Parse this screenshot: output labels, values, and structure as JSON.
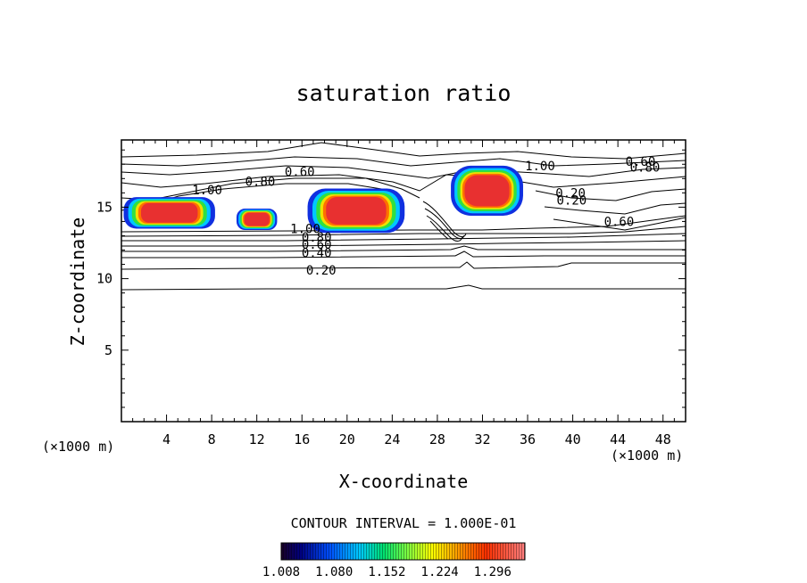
{
  "chart_data": {
    "type": "heatmap",
    "title": "saturation ratio",
    "xlabel": "X-coordinate",
    "ylabel": "Z-coordinate",
    "x_unit_left": "(×1000 m)",
    "x_unit_right": "(×1000 m)",
    "xlim": [
      0,
      50
    ],
    "ylim": [
      0,
      19.7
    ],
    "x_ticks": [
      4,
      8,
      12,
      16,
      20,
      24,
      28,
      32,
      36,
      40,
      44,
      48
    ],
    "x_tick_labels": [
      "4",
      "8",
      "12",
      "16",
      "20",
      "24",
      "28",
      "32",
      "36",
      "40",
      "44",
      "48"
    ],
    "y_ticks": [
      5,
      10,
      15
    ],
    "y_tick_labels": [
      "5",
      "10",
      "15"
    ],
    "contour_interval_text": "CONTOUR INTERVAL = 1.000E-01",
    "colorbar": {
      "range": [
        1.008,
        1.34
      ],
      "ticks": [
        1.008,
        1.08,
        1.152,
        1.224,
        1.296
      ],
      "tick_labels": [
        "1.008",
        "1.080",
        "1.152",
        "1.224",
        "1.296"
      ]
    },
    "contour_labels": [
      {
        "text": "0.20",
        "x": 17.7,
        "z": 10.6
      },
      {
        "text": "0.40",
        "x": 17.3,
        "z": 11.8
      },
      {
        "text": "0.60",
        "x": 17.3,
        "z": 12.4
      },
      {
        "text": "0.80",
        "x": 17.3,
        "z": 12.9
      },
      {
        "text": "1.00",
        "x": 16.3,
        "z": 13.5
      },
      {
        "text": "1.00",
        "x": 7.6,
        "z": 16.2
      },
      {
        "text": "0.80",
        "x": 12.3,
        "z": 16.8
      },
      {
        "text": "0.60",
        "x": 15.8,
        "z": 17.5
      },
      {
        "text": "1.00",
        "x": 37.1,
        "z": 17.9
      },
      {
        "text": "0.20",
        "x": 39.8,
        "z": 16.0
      },
      {
        "text": "0.20",
        "x": 39.9,
        "z": 15.5
      },
      {
        "text": "0.60",
        "x": 46.0,
        "z": 18.2
      },
      {
        "text": "0.80",
        "x": 46.4,
        "z": 17.8
      },
      {
        "text": "0.60",
        "x": 44.1,
        "z": 14.0
      }
    ],
    "supersaturated_regions": [
      {
        "x": [
          0.2,
          8.3
        ],
        "z": [
          13.5,
          15.7
        ]
      },
      {
        "x": [
          10.2,
          13.8
        ],
        "z": [
          13.4,
          14.9
        ]
      },
      {
        "x": [
          16.5,
          25.1
        ],
        "z": [
          13.2,
          16.3
        ]
      },
      {
        "x": [
          29.2,
          35.6
        ],
        "z": [
          14.4,
          17.9
        ]
      }
    ]
  }
}
